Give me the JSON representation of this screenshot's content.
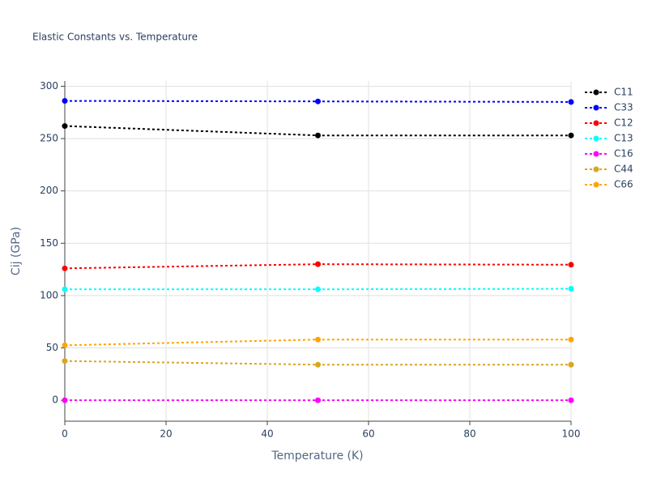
{
  "chart_data": {
    "type": "line",
    "title": "Elastic Constants vs. Temperature",
    "x_label": "Temperature (K)",
    "y_label": "Cij (GPa)",
    "x": [
      0,
      50,
      100
    ],
    "xlim": [
      0,
      100
    ],
    "xticks": [
      0,
      20,
      40,
      60,
      80,
      100
    ],
    "ylim": [
      -20,
      305
    ],
    "yticks": [
      0,
      50,
      100,
      150,
      200,
      250,
      300
    ],
    "grid": true,
    "legend": "right",
    "series": [
      {
        "name": "C11",
        "color": "#000000",
        "values": [
          262,
          253,
          253
        ]
      },
      {
        "name": "C33",
        "color": "#0000ff",
        "values": [
          286,
          285.5,
          285
        ]
      },
      {
        "name": "C12",
        "color": "#ff0000",
        "values": [
          126,
          130,
          129.5
        ]
      },
      {
        "name": "C13",
        "color": "#00ffff",
        "values": [
          106,
          106,
          106.5
        ]
      },
      {
        "name": "C16",
        "color": "#ff00ff",
        "values": [
          0,
          0,
          0
        ]
      },
      {
        "name": "C44",
        "color": "#daa520",
        "values": [
          37.5,
          34,
          34
        ]
      },
      {
        "name": "C66",
        "color": "#ffa500",
        "values": [
          52.5,
          58,
          58
        ]
      }
    ]
  }
}
